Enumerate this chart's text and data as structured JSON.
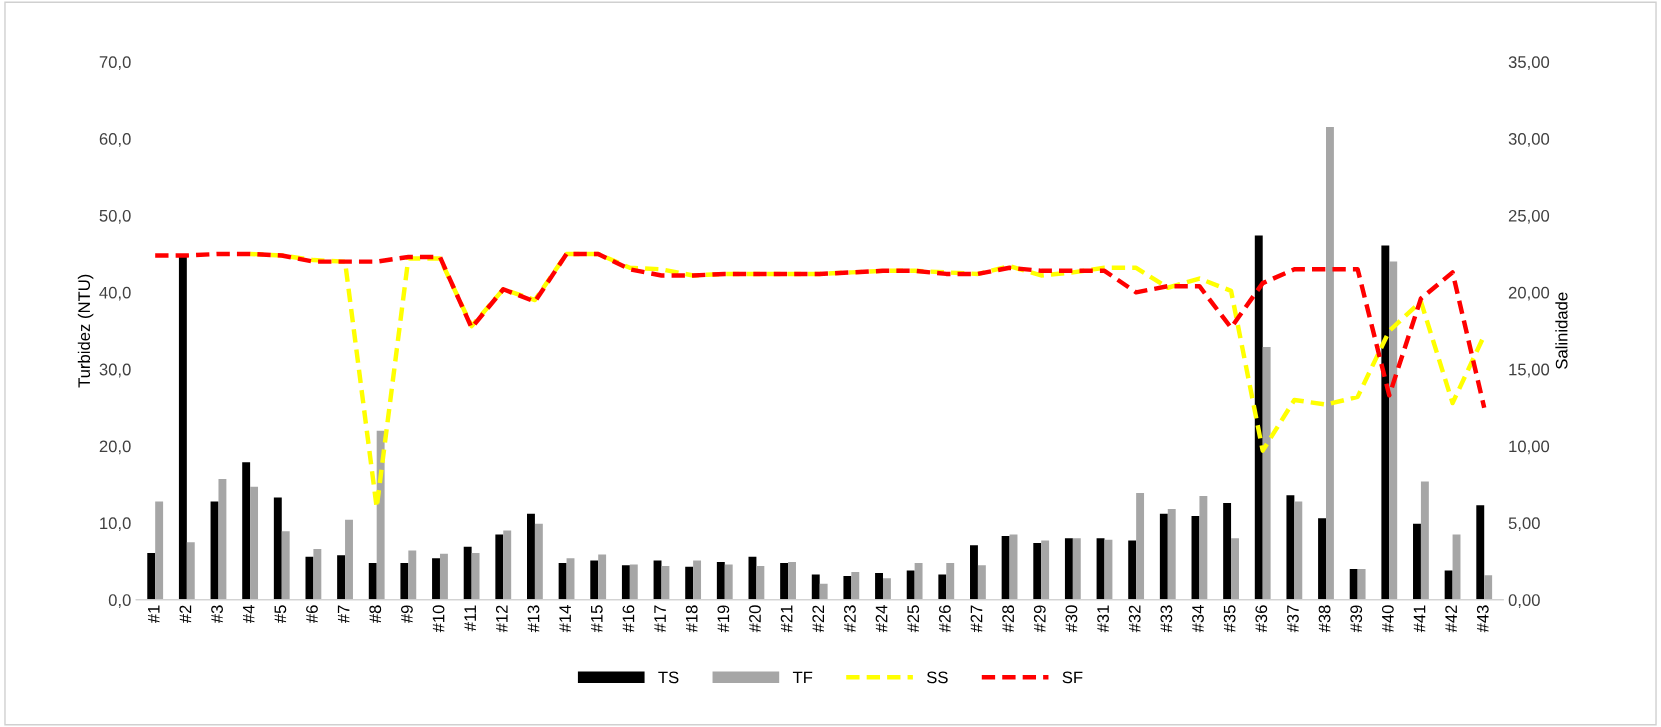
{
  "chart_data": {
    "type": "bar",
    "categories": [
      "#1",
      "#2",
      "#3",
      "#4",
      "#5",
      "#6",
      "#7",
      "#8",
      "#9",
      "#10",
      "#11",
      "#12",
      "#13",
      "#14",
      "#15",
      "#16",
      "#17",
      "#18",
      "#19",
      "#20",
      "#21",
      "#22",
      "#23",
      "#24",
      "#25",
      "#26",
      "#27",
      "#28",
      "#29",
      "#30",
      "#31",
      "#32",
      "#33",
      "#34",
      "#35",
      "#36",
      "#37",
      "#38",
      "#39",
      "#40",
      "#41",
      "#42",
      "#43"
    ],
    "ylabel": "Turbidez (NTU)",
    "y2label": "Salinidade",
    "ylim": [
      0,
      70
    ],
    "yticks": [
      {
        "value": 0,
        "label": "0,0"
      },
      {
        "value": 10,
        "label": "10,0"
      },
      {
        "value": 20,
        "label": "20,0"
      },
      {
        "value": 30,
        "label": "30,0"
      },
      {
        "value": 40,
        "label": "40,0"
      },
      {
        "value": 50,
        "label": "50,0"
      },
      {
        "value": 60,
        "label": "60,0"
      },
      {
        "value": 70,
        "label": "70,0"
      }
    ],
    "y2lim": [
      0,
      35
    ],
    "y2ticks": [
      {
        "value": 0,
        "label": "0,00"
      },
      {
        "value": 5,
        "label": "5,00"
      },
      {
        "value": 10,
        "label": "10,00"
      },
      {
        "value": 15,
        "label": "15,00"
      },
      {
        "value": 20,
        "label": "20,00"
      },
      {
        "value": 25,
        "label": "25,00"
      },
      {
        "value": 30,
        "label": "30,00"
      },
      {
        "value": 35,
        "label": "35,00"
      }
    ],
    "grid": false,
    "legend": "bottom",
    "series": [
      {
        "name": "TS",
        "color": "#000000",
        "values": [
          6.1,
          45,
          12.8,
          17.9,
          13.3,
          5.6,
          5.8,
          4.8,
          4.8,
          5.4,
          6.9,
          8.5,
          11.2,
          4.8,
          5.1,
          4.5,
          5.1,
          4.3,
          4.9,
          5.6,
          4.8,
          3.3,
          3.1,
          3.5,
          3.8,
          3.3,
          7.1,
          8.3,
          7.4,
          8.0,
          8.0,
          7.7,
          11.2,
          10.9,
          12.6,
          47.4,
          13.6,
          10.6,
          4.0,
          46.1,
          9.9,
          3.8,
          12.3
        ]
      },
      {
        "name": "TF",
        "color": "#a6a6a6",
        "values": [
          12.8,
          7.5,
          15.7,
          14.7,
          8.9,
          6.6,
          10.4,
          22.0,
          6.4,
          6.0,
          6.1,
          9.0,
          9.9,
          5.4,
          5.9,
          4.6,
          4.4,
          5.1,
          4.6,
          4.4,
          4.9,
          2.1,
          3.6,
          2.8,
          4.8,
          4.8,
          4.5,
          8.5,
          7.7,
          8.0,
          7.8,
          13.9,
          11.8,
          13.5,
          8.0,
          32.9,
          12.8,
          61.5,
          4.0,
          44.0,
          15.4,
          8.5,
          3.2
        ]
      },
      {
        "name": "SS",
        "type": "line",
        "axis": "y2",
        "color": "#ffff00",
        "line_style": "dashed",
        "values": [
          null,
          null,
          null,
          22.5,
          22.4,
          22.1,
          22.0,
          6.0,
          22.2,
          22.2,
          17.8,
          20.2,
          19.5,
          22.5,
          22.5,
          21.6,
          21.5,
          21.1,
          21.2,
          21.2,
          21.2,
          21.2,
          21.3,
          21.4,
          21.4,
          21.3,
          21.2,
          21.7,
          21.1,
          21.3,
          21.6,
          21.6,
          20.3,
          20.9,
          20.1,
          9.7,
          13.0,
          12.7,
          13.2,
          17.5,
          19.4,
          12.8,
          17.2
        ]
      },
      {
        "name": "SF",
        "type": "line",
        "axis": "y2",
        "color": "#ff0000",
        "line_style": "dashed",
        "values": [
          22.4,
          22.4,
          22.5,
          22.5,
          22.4,
          22.0,
          22.0,
          22.0,
          22.3,
          22.3,
          17.7,
          20.2,
          19.4,
          22.5,
          22.5,
          21.5,
          21.1,
          21.1,
          21.2,
          21.2,
          21.2,
          21.2,
          21.3,
          21.4,
          21.4,
          21.2,
          21.2,
          21.6,
          21.4,
          21.4,
          21.4,
          20.0,
          20.4,
          20.4,
          17.7,
          20.6,
          21.5,
          21.5,
          21.5,
          13.3,
          19.6,
          21.3,
          12.5
        ]
      }
    ]
  }
}
